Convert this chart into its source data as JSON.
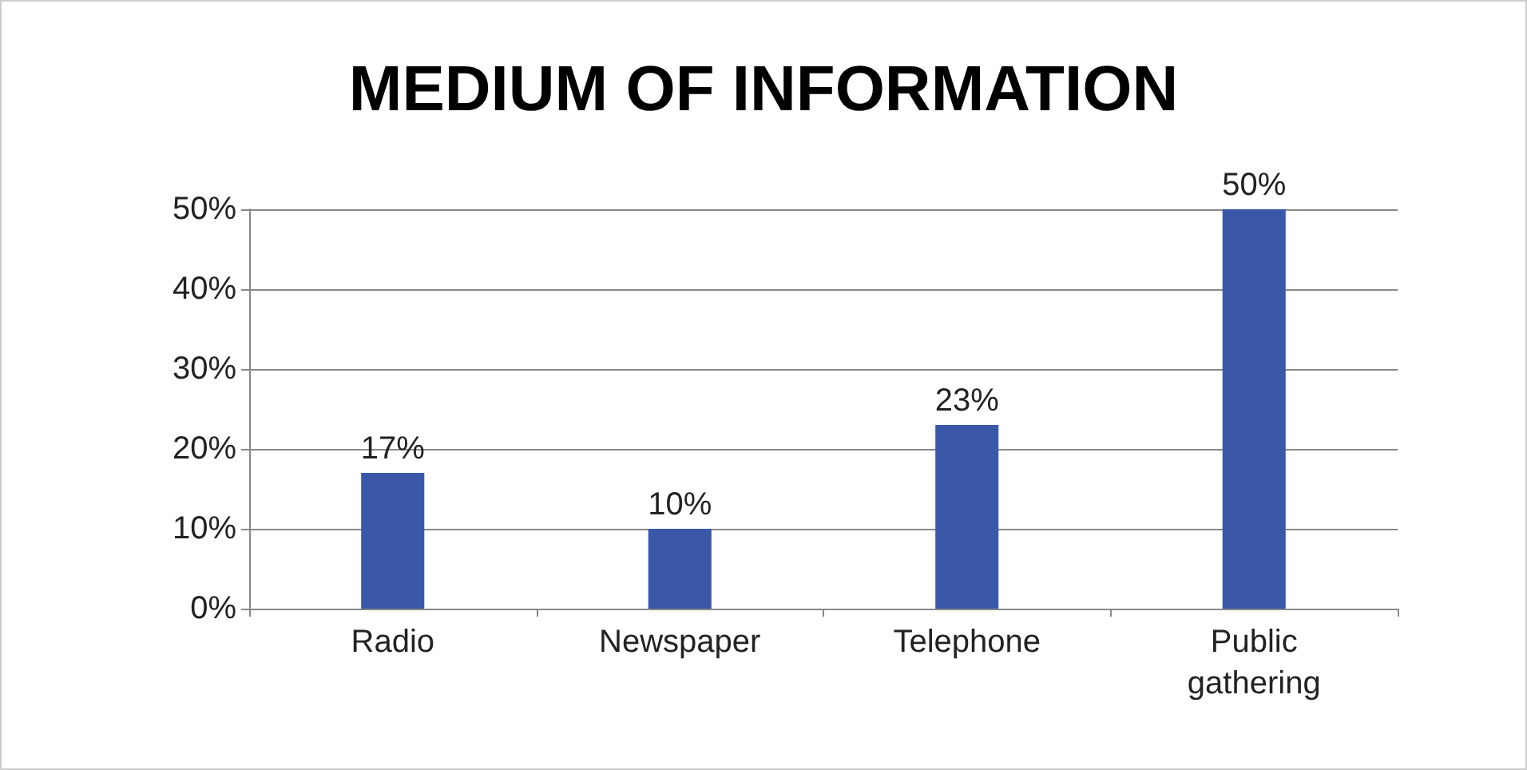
{
  "chart_data": {
    "type": "bar",
    "title": "MEDIUM OF INFORMATION",
    "categories": [
      "Radio",
      "Newspaper",
      "Telephone",
      "Public\ngathering"
    ],
    "values": [
      17,
      10,
      23,
      50
    ],
    "value_labels": [
      "17%",
      "10%",
      "23%",
      "50%"
    ],
    "color": "#3b58a8",
    "ylim": [
      0,
      50
    ],
    "yticks": [
      {
        "value": 0,
        "label": "0%"
      },
      {
        "value": 10,
        "label": "10%"
      },
      {
        "value": 20,
        "label": "20%"
      },
      {
        "value": 30,
        "label": "30%"
      },
      {
        "value": 40,
        "label": "40%"
      },
      {
        "value": 50,
        "label": "50%"
      }
    ],
    "grid": "y"
  }
}
